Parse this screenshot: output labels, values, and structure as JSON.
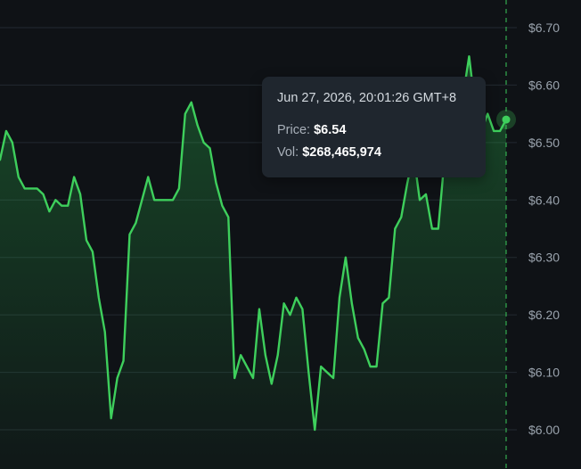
{
  "chart_data": {
    "type": "area",
    "title": "",
    "xlabel": "",
    "ylabel": "",
    "ylim": [
      5.97,
      6.72
    ],
    "y_ticks": [
      "$6.70",
      "$6.60",
      "$6.50",
      "$6.40",
      "$6.30",
      "$6.20",
      "$6.10",
      "$6.00"
    ],
    "y_tick_values": [
      6.7,
      6.6,
      6.5,
      6.4,
      6.3,
      6.2,
      6.1,
      6.0
    ],
    "grid": true,
    "series": [
      {
        "color": "#3ecf5c",
        "values": [
          6.47,
          6.52,
          6.5,
          6.44,
          6.42,
          6.42,
          6.42,
          6.41,
          6.38,
          6.4,
          6.39,
          6.39,
          6.44,
          6.41,
          6.33,
          6.31,
          6.23,
          6.17,
          6.02,
          6.09,
          6.12,
          6.34,
          6.36,
          6.4,
          6.44,
          6.4,
          6.4,
          6.4,
          6.4,
          6.42,
          6.55,
          6.57,
          6.53,
          6.5,
          6.49,
          6.43,
          6.39,
          6.37,
          6.09,
          6.13,
          6.11,
          6.09,
          6.21,
          6.13,
          6.08,
          6.13,
          6.22,
          6.2,
          6.23,
          6.21,
          6.1,
          6.0,
          6.11,
          6.1,
          6.09,
          6.23,
          6.3,
          6.22,
          6.16,
          6.14,
          6.11,
          6.11,
          6.22,
          6.23,
          6.35,
          6.37,
          6.43,
          6.48,
          6.4,
          6.41,
          6.35,
          6.35,
          6.47,
          6.51,
          6.55,
          6.58,
          6.65,
          6.56,
          6.52,
          6.55,
          6.52,
          6.52,
          6.54
        ]
      }
    ],
    "tooltip": {
      "time": "Jun 27, 2026, 20:01:26 GMT+8",
      "price_label": "Price:",
      "price_value": "$6.54",
      "vol_label": "Vol:",
      "vol_value": "$268,465,974"
    },
    "hover_value": 6.54
  }
}
